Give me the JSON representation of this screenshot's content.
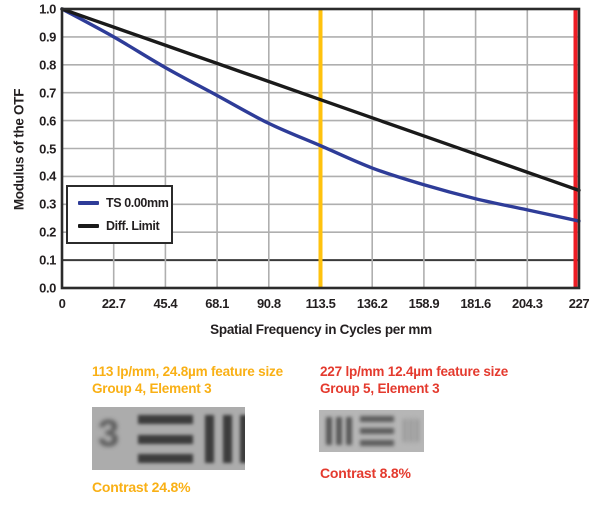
{
  "chart_data": {
    "type": "line",
    "title": "",
    "xlabel": "Spatial Frequency in Cycles per mm",
    "ylabel": "Modulus of the OTF",
    "xlim": [
      0,
      227
    ],
    "ylim": [
      0,
      1
    ],
    "grid": true,
    "grid_color": "#afafaf",
    "frame_color": "#2b2b2b",
    "emphasized_gridline_y": 0.1,
    "x_values": [
      0,
      22.7,
      45.4,
      68.1,
      90.8,
      113.5,
      136.2,
      158.9,
      181.6,
      204.3,
      227
    ],
    "x_tick_labels": [
      "0",
      "22.7",
      "45.4",
      "68.1",
      "90.8",
      "113.5",
      "136.2",
      "158.9",
      "181.6",
      "204.3",
      "227"
    ],
    "y_tick_labels": [
      "1.0",
      "0.9",
      "0.8",
      "0.7",
      "0.6",
      "0.5",
      "0.4",
      "0.3",
      "0.2",
      "0.1",
      "0.0"
    ],
    "legend_position": "lower-left",
    "series": [
      {
        "name": "TS 0.00mm",
        "color": "#2e3c98",
        "values": [
          1.0,
          0.9,
          0.79,
          0.69,
          0.59,
          0.51,
          0.43,
          0.37,
          0.32,
          0.28,
          0.24
        ]
      },
      {
        "name": "Diff. Limit",
        "color": "#1a1a1a",
        "values": [
          1.0,
          0.935,
          0.87,
          0.805,
          0.74,
          0.675,
          0.61,
          0.545,
          0.48,
          0.415,
          0.35
        ]
      }
    ],
    "vertical_markers": [
      {
        "x": 113.5,
        "color": "#ffc20e"
      },
      {
        "x": 227,
        "color": "#ed1c24"
      }
    ]
  },
  "annotations": {
    "left": {
      "color": "#f9b015",
      "line1": "113 lp/mm, 24.8µm feature size",
      "line2": "Group 4, Element 3",
      "contrast": "Contrast 24.8%"
    },
    "right": {
      "color": "#e43a2e",
      "line1": "227 lp/mm 12.4µm feature size",
      "line2": "Group 5, Element 3",
      "contrast": "Contrast 8.8%"
    }
  }
}
